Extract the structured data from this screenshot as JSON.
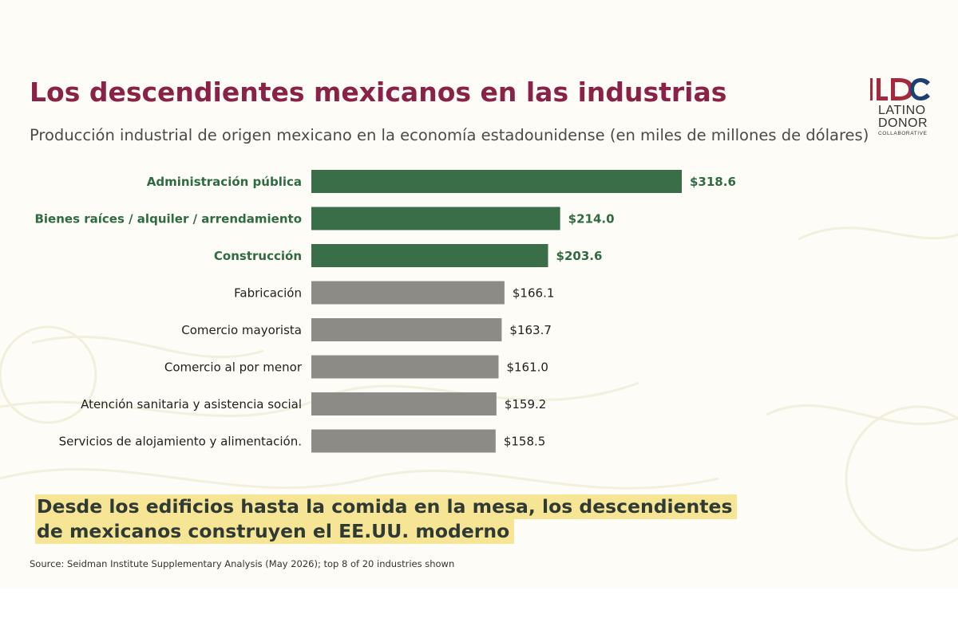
{
  "title": "Los descendientes mexicanos en las industrias",
  "subtitle": "Producción industrial de origen mexicano en la economía estadounidense (en miles de millones de dólares)",
  "logo": {
    "mark": "LDC",
    "line1": "LATINO",
    "line2": "DONOR",
    "line3": "COLLABORATIVE",
    "colors": {
      "red": "#a5283c",
      "blue": "#1f3f73"
    }
  },
  "takeaway": {
    "line1": "Desde los edificios hasta la comida en la mesa, los descendientes",
    "line2": "de mexicanos construyen el EE.UU. moderno"
  },
  "source": "Source: Seidman Institute Supplementary Analysis (May 2026); top 8 of 20 industries shown",
  "colors": {
    "title": "#8a2147",
    "highlight_bar": "#3a6e49",
    "other_bar": "#8c8b85",
    "highlight_label": "#2f6b41",
    "takeaway_bg": "#f7e596"
  },
  "chart_data": {
    "type": "bar",
    "orientation": "horizontal",
    "title": "",
    "xlabel": "",
    "ylabel": "",
    "categories": [
      "Administración pública",
      "Bienes raíces / alquiler / arrendamiento",
      "Construcción",
      "Fabricación",
      "Comercio mayorista",
      "Comercio al por menor",
      "Atención sanitaria y asistencia social",
      "Servicios de alojamiento y alimentación."
    ],
    "values": [
      318.6,
      214.0,
      203.6,
      166.1,
      163.7,
      161.0,
      159.2,
      158.5
    ],
    "value_labels": [
      "$318.6",
      "$214.0",
      "$203.6",
      "$166.1",
      "$163.7",
      "$161.0",
      "$159.2",
      "$158.5"
    ],
    "highlighted": [
      true,
      true,
      true,
      false,
      false,
      false,
      false,
      false
    ],
    "xlim": [
      0,
      318.6
    ],
    "grid": false,
    "legend": "none"
  }
}
